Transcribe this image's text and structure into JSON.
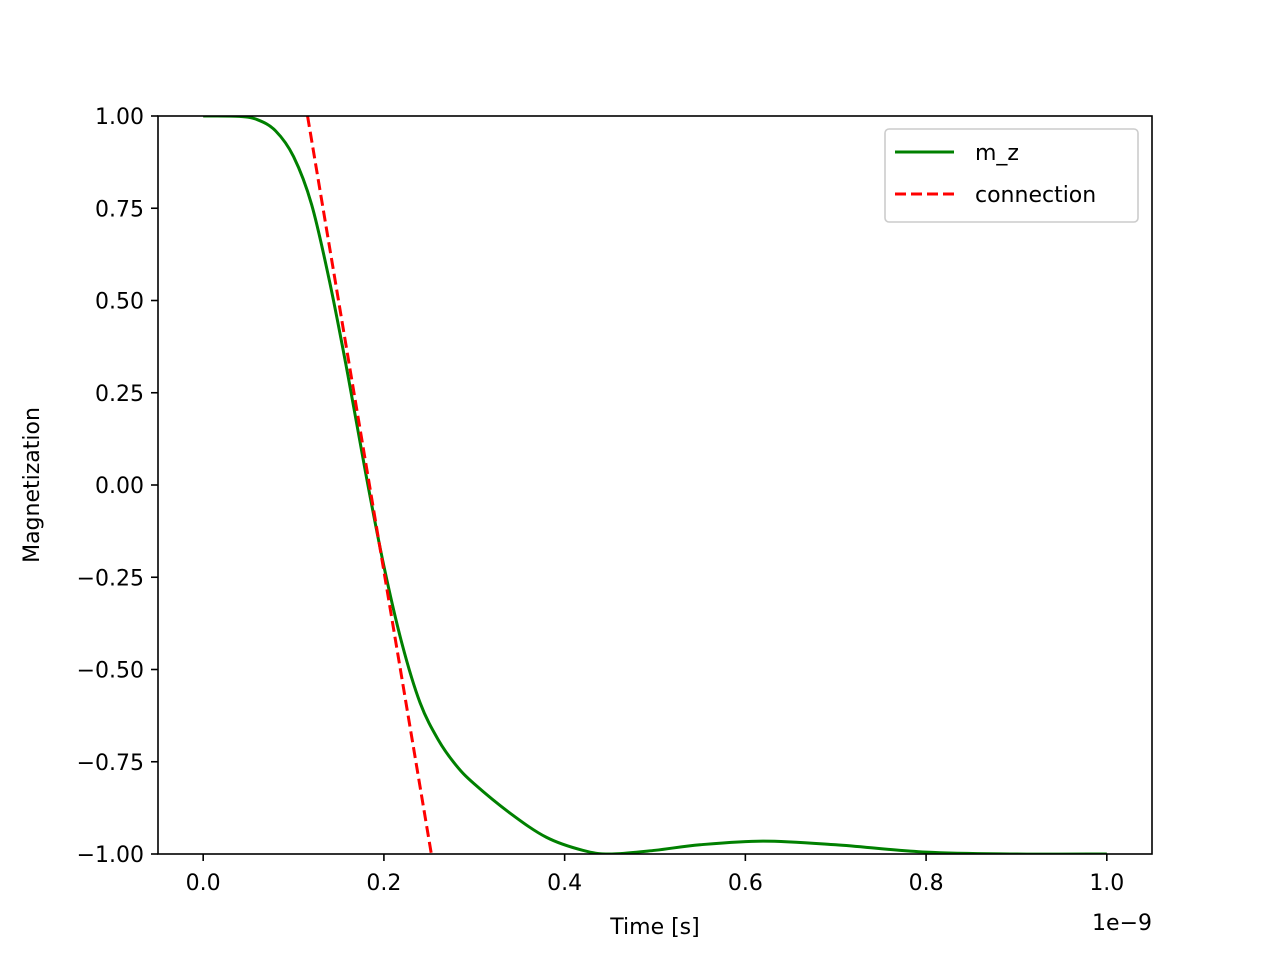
{
  "chart_data": {
    "type": "line",
    "xlabel": "Time [s]",
    "ylabel": "Magnetization",
    "x_offset_label": "1e−9",
    "xlim": [
      -0.05,
      1.05
    ],
    "ylim": [
      -1.0,
      1.0
    ],
    "x_scale_factor": 1e-09,
    "x_ticks": [
      0.0,
      0.2,
      0.4,
      0.6,
      0.8,
      1.0
    ],
    "x_tick_labels": [
      "0.0",
      "0.2",
      "0.4",
      "0.6",
      "0.8",
      "1.0"
    ],
    "y_ticks": [
      1.0,
      0.75,
      0.5,
      0.25,
      0.0,
      -0.25,
      -0.5,
      -0.75,
      -1.0
    ],
    "y_tick_labels": [
      "1.00",
      "0.75",
      "0.50",
      "0.25",
      "0.00",
      "−0.25",
      "−0.50",
      "−0.75",
      "−1.00"
    ],
    "grid": false,
    "legend_position": "top-right",
    "series": [
      {
        "name": "m_z",
        "color": "#008000",
        "style": "solid",
        "x": [
          0.0,
          0.04,
          0.06,
          0.08,
          0.1,
          0.12,
          0.14,
          0.16,
          0.18,
          0.2,
          0.22,
          0.24,
          0.26,
          0.28,
          0.3,
          0.34,
          0.38,
          0.42,
          0.45,
          0.5,
          0.55,
          0.62,
          0.7,
          0.8,
          0.9,
          1.0
        ],
        "y": [
          1.0,
          0.999,
          0.99,
          0.96,
          0.89,
          0.76,
          0.55,
          0.3,
          0.03,
          -0.22,
          -0.43,
          -0.59,
          -0.69,
          -0.76,
          -0.81,
          -0.89,
          -0.955,
          -0.99,
          -1.0,
          -0.99,
          -0.975,
          -0.965,
          -0.975,
          -0.995,
          -1.0,
          -1.0
        ]
      },
      {
        "name": "connection",
        "color": "#ff0000",
        "style": "dashed",
        "x": [
          0.1155,
          0.2525
        ],
        "y": [
          1.0,
          -1.0
        ]
      }
    ]
  }
}
